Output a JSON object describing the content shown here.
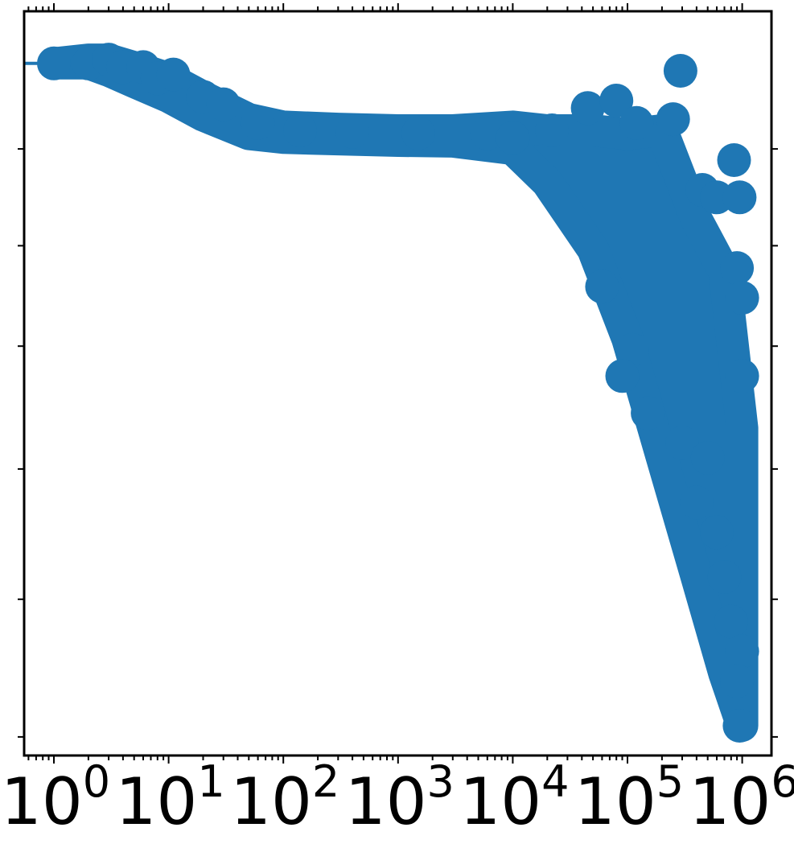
{
  "chart_data": {
    "type": "scatter",
    "title": "",
    "xlabel": "",
    "ylabel": "",
    "x_scale": "log",
    "xlim": [
      0.55,
      1800000
    ],
    "ylim": [
      0,
      1
    ],
    "grid": false,
    "legend": "none",
    "marker_color": "#1f77b4",
    "x_ticks": [
      {
        "value": 1,
        "base": "10",
        "exp": "0"
      },
      {
        "value": 10,
        "base": "10",
        "exp": "1"
      },
      {
        "value": 100,
        "base": "10",
        "exp": "2"
      },
      {
        "value": 1000,
        "base": "10",
        "exp": "3"
      },
      {
        "value": 10000,
        "base": "10",
        "exp": "4"
      },
      {
        "value": 100000,
        "base": "10",
        "exp": "5"
      },
      {
        "value": 1000000,
        "base": "10",
        "exp": "6"
      }
    ],
    "y_ticks": [
      0.025,
      0.21,
      0.385,
      0.55,
      0.685,
      0.815
    ],
    "band": {
      "x": [
        1,
        2,
        3,
        5,
        10,
        20,
        50,
        100,
        300,
        1000,
        3000,
        10000,
        20000,
        50000,
        100000,
        200000,
        400000,
        700000,
        1000000
      ],
      "upper": [
        0.93,
        0.935,
        0.935,
        0.925,
        0.91,
        0.885,
        0.855,
        0.845,
        0.842,
        0.84,
        0.84,
        0.845,
        0.84,
        0.84,
        0.835,
        0.84,
        0.72,
        0.65,
        0.44
      ],
      "lower": [
        0.93,
        0.93,
        0.92,
        0.905,
        0.885,
        0.86,
        0.835,
        0.83,
        0.828,
        0.826,
        0.825,
        0.815,
        0.77,
        0.68,
        0.56,
        0.4,
        0.24,
        0.11,
        0.04
      ]
    },
    "points": [
      [
        1,
        0.93
      ],
      [
        2,
        0.93
      ],
      [
        3,
        0.935
      ],
      [
        4,
        0.925
      ],
      [
        6,
        0.925
      ],
      [
        8,
        0.91
      ],
      [
        11,
        0.915
      ],
      [
        20,
        0.885
      ],
      [
        30,
        0.875
      ],
      [
        60,
        0.85
      ],
      [
        140,
        0.84
      ],
      [
        400,
        0.838
      ],
      [
        1500,
        0.836
      ],
      [
        6000,
        0.836
      ],
      [
        10000,
        0.83
      ],
      [
        22000,
        0.84
      ],
      [
        45000,
        0.87
      ],
      [
        80000,
        0.88
      ],
      [
        120000,
        0.85
      ],
      [
        250000,
        0.855
      ],
      [
        290000,
        0.92
      ],
      [
        450000,
        0.76
      ],
      [
        600000,
        0.75
      ],
      [
        850000,
        0.8
      ],
      [
        950000,
        0.75
      ],
      [
        900000,
        0.655
      ],
      [
        1000000,
        0.615
      ],
      [
        60000,
        0.63
      ],
      [
        110000,
        0.545
      ],
      [
        90000,
        0.51
      ],
      [
        150000,
        0.46
      ],
      [
        300000,
        0.42
      ],
      [
        500000,
        0.4
      ],
      [
        1000000,
        0.51
      ],
      [
        400000,
        0.34
      ],
      [
        600000,
        0.3
      ],
      [
        700000,
        0.24
      ],
      [
        800000,
        0.18
      ],
      [
        1000000,
        0.14
      ],
      [
        900000,
        0.1
      ],
      [
        950000,
        0.04
      ]
    ]
  }
}
